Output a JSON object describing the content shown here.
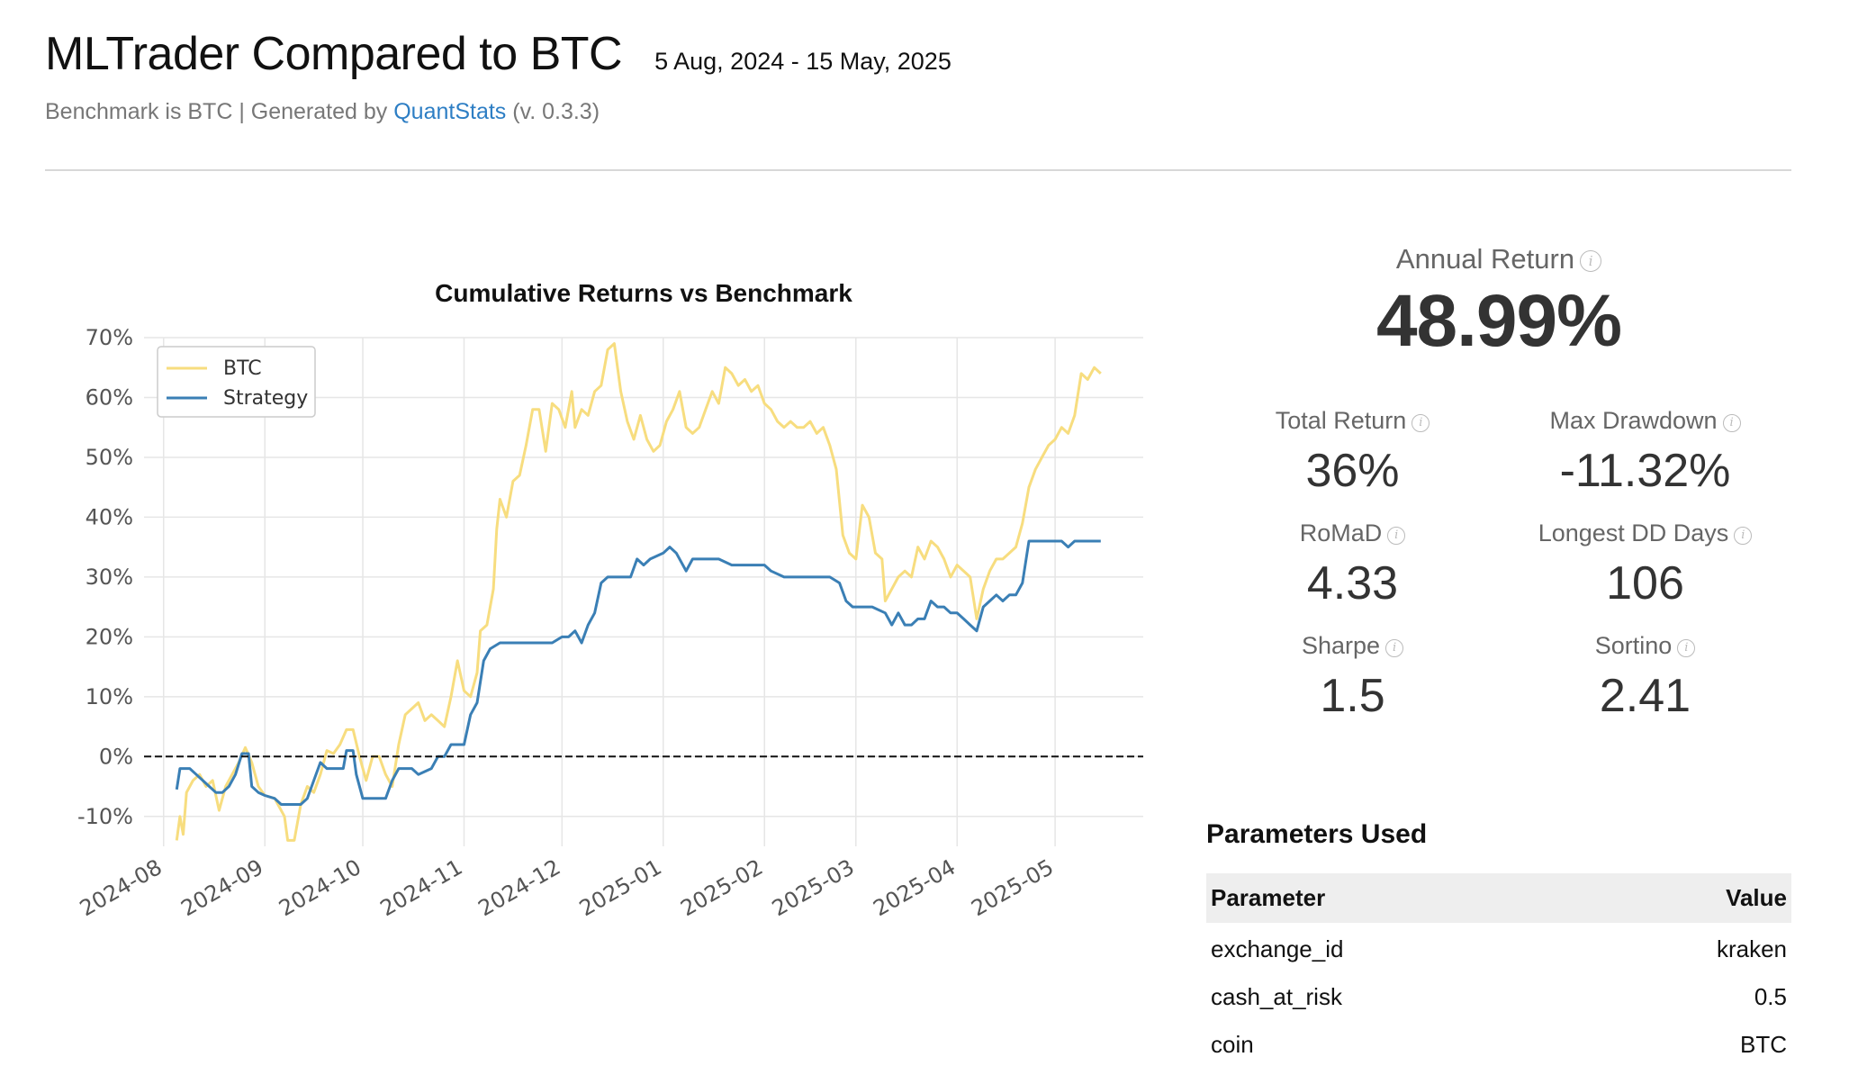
{
  "header": {
    "title": "MLTrader Compared to BTC",
    "date_range": "5 Aug, 2024 - 15 May, 2025",
    "subtitle_prefix": "Benchmark is BTC | Generated by ",
    "subtitle_link": "QuantStats",
    "subtitle_suffix": " (v. 0.3.3)"
  },
  "colors": {
    "btc": "#f7dd7f",
    "strategy": "#3a7fb5",
    "link": "#2d7ec4"
  },
  "chart_data": {
    "type": "line",
    "title": "Cumulative Returns vs Benchmark",
    "xlabel": "",
    "ylabel": "",
    "ylim": [
      -15,
      70
    ],
    "y_ticks": [
      -10,
      0,
      10,
      20,
      30,
      40,
      50,
      60,
      70
    ],
    "y_tick_labels": [
      "-10%",
      "0%",
      "10%",
      "20%",
      "30%",
      "40%",
      "50%",
      "60%",
      "70%"
    ],
    "x_tick_labels": [
      "2024-08",
      "2024-09",
      "2024-10",
      "2024-11",
      "2024-12",
      "2025-01",
      "2025-02",
      "2025-03",
      "2025-04",
      "2025-05"
    ],
    "x_tick_dates": [
      "2024-08-01",
      "2024-09-01",
      "2024-10-01",
      "2024-11-01",
      "2024-12-01",
      "2025-01-01",
      "2025-02-01",
      "2025-03-01",
      "2025-04-01",
      "2025-05-01"
    ],
    "xlim": [
      "2024-07-26",
      "2025-05-28"
    ],
    "legend_position": "top-left",
    "grid": true,
    "baseline": 0,
    "series": [
      {
        "name": "BTC",
        "color": "#f7dd7f",
        "points": [
          [
            "2024-08-05",
            -14
          ],
          [
            "2024-08-06",
            -10
          ],
          [
            "2024-08-07",
            -13
          ],
          [
            "2024-08-08",
            -6
          ],
          [
            "2024-08-10",
            -4
          ],
          [
            "2024-08-12",
            -3
          ],
          [
            "2024-08-14",
            -5
          ],
          [
            "2024-08-16",
            -4
          ],
          [
            "2024-08-18",
            -9
          ],
          [
            "2024-08-20",
            -5
          ],
          [
            "2024-08-22",
            -3
          ],
          [
            "2024-08-24",
            -1
          ],
          [
            "2024-08-26",
            1.5
          ],
          [
            "2024-08-28",
            -1
          ],
          [
            "2024-08-30",
            -5
          ],
          [
            "2024-09-01",
            -6.5
          ],
          [
            "2024-09-04",
            -7
          ],
          [
            "2024-09-07",
            -10
          ],
          [
            "2024-09-08",
            -14
          ],
          [
            "2024-09-10",
            -14
          ],
          [
            "2024-09-12",
            -8
          ],
          [
            "2024-09-14",
            -5
          ],
          [
            "2024-09-16",
            -6
          ],
          [
            "2024-09-18",
            -3
          ],
          [
            "2024-09-20",
            1
          ],
          [
            "2024-09-22",
            0.5
          ],
          [
            "2024-09-24",
            2
          ],
          [
            "2024-09-26",
            4.5
          ],
          [
            "2024-09-28",
            4.5
          ],
          [
            "2024-09-30",
            0
          ],
          [
            "2024-10-02",
            -4
          ],
          [
            "2024-10-04",
            0
          ],
          [
            "2024-10-06",
            0
          ],
          [
            "2024-10-08",
            -3
          ],
          [
            "2024-10-10",
            -5
          ],
          [
            "2024-10-12",
            2
          ],
          [
            "2024-10-14",
            7
          ],
          [
            "2024-10-16",
            8
          ],
          [
            "2024-10-18",
            9
          ],
          [
            "2024-10-20",
            6
          ],
          [
            "2024-10-22",
            7
          ],
          [
            "2024-10-24",
            6
          ],
          [
            "2024-10-26",
            5
          ],
          [
            "2024-10-28",
            10
          ],
          [
            "2024-10-30",
            16
          ],
          [
            "2024-11-01",
            11
          ],
          [
            "2024-11-03",
            10
          ],
          [
            "2024-11-05",
            14
          ],
          [
            "2024-11-06",
            21
          ],
          [
            "2024-11-08",
            22
          ],
          [
            "2024-11-10",
            28
          ],
          [
            "2024-11-11",
            38
          ],
          [
            "2024-11-12",
            43
          ],
          [
            "2024-11-14",
            40
          ],
          [
            "2024-11-16",
            46
          ],
          [
            "2024-11-18",
            47
          ],
          [
            "2024-11-20",
            52
          ],
          [
            "2024-11-22",
            58
          ],
          [
            "2024-11-24",
            58
          ],
          [
            "2024-11-26",
            51
          ],
          [
            "2024-11-28",
            59
          ],
          [
            "2024-11-30",
            58
          ],
          [
            "2024-12-02",
            55
          ],
          [
            "2024-12-04",
            61
          ],
          [
            "2024-12-05",
            55
          ],
          [
            "2024-12-07",
            58
          ],
          [
            "2024-12-09",
            57
          ],
          [
            "2024-12-11",
            61
          ],
          [
            "2024-12-13",
            62
          ],
          [
            "2024-12-15",
            68
          ],
          [
            "2024-12-17",
            69
          ],
          [
            "2024-12-19",
            61
          ],
          [
            "2024-12-21",
            56
          ],
          [
            "2024-12-23",
            53
          ],
          [
            "2024-12-25",
            57
          ],
          [
            "2024-12-27",
            53
          ],
          [
            "2024-12-29",
            51
          ],
          [
            "2024-12-31",
            52
          ],
          [
            "2025-01-02",
            56
          ],
          [
            "2025-01-04",
            58
          ],
          [
            "2025-01-06",
            61
          ],
          [
            "2025-01-08",
            55
          ],
          [
            "2025-01-10",
            54
          ],
          [
            "2025-01-12",
            55
          ],
          [
            "2025-01-14",
            58
          ],
          [
            "2025-01-16",
            61
          ],
          [
            "2025-01-18",
            59
          ],
          [
            "2025-01-20",
            65
          ],
          [
            "2025-01-22",
            64
          ],
          [
            "2025-01-24",
            62
          ],
          [
            "2025-01-26",
            63
          ],
          [
            "2025-01-28",
            61
          ],
          [
            "2025-01-30",
            62
          ],
          [
            "2025-02-01",
            59
          ],
          [
            "2025-02-03",
            58
          ],
          [
            "2025-02-05",
            56
          ],
          [
            "2025-02-07",
            55
          ],
          [
            "2025-02-09",
            56
          ],
          [
            "2025-02-11",
            55
          ],
          [
            "2025-02-13",
            55
          ],
          [
            "2025-02-15",
            56
          ],
          [
            "2025-02-17",
            54
          ],
          [
            "2025-02-19",
            55
          ],
          [
            "2025-02-21",
            52
          ],
          [
            "2025-02-23",
            48
          ],
          [
            "2025-02-25",
            37
          ],
          [
            "2025-02-27",
            34
          ],
          [
            "2025-03-01",
            33
          ],
          [
            "2025-03-03",
            42
          ],
          [
            "2025-03-05",
            40
          ],
          [
            "2025-03-07",
            34
          ],
          [
            "2025-03-09",
            33
          ],
          [
            "2025-03-10",
            26
          ],
          [
            "2025-03-12",
            28
          ],
          [
            "2025-03-14",
            30
          ],
          [
            "2025-03-16",
            31
          ],
          [
            "2025-03-18",
            30
          ],
          [
            "2025-03-20",
            35
          ],
          [
            "2025-03-22",
            33
          ],
          [
            "2025-03-24",
            36
          ],
          [
            "2025-03-26",
            35
          ],
          [
            "2025-03-28",
            33
          ],
          [
            "2025-03-30",
            30
          ],
          [
            "2025-04-01",
            32
          ],
          [
            "2025-04-03",
            31
          ],
          [
            "2025-04-05",
            30
          ],
          [
            "2025-04-07",
            23
          ],
          [
            "2025-04-09",
            28
          ],
          [
            "2025-04-11",
            31
          ],
          [
            "2025-04-13",
            33
          ],
          [
            "2025-04-15",
            33
          ],
          [
            "2025-04-17",
            34
          ],
          [
            "2025-04-19",
            35
          ],
          [
            "2025-04-21",
            39
          ],
          [
            "2025-04-23",
            45
          ],
          [
            "2025-04-25",
            48
          ],
          [
            "2025-04-27",
            50
          ],
          [
            "2025-04-29",
            52
          ],
          [
            "2025-05-01",
            53
          ],
          [
            "2025-05-03",
            55
          ],
          [
            "2025-05-05",
            54
          ],
          [
            "2025-05-07",
            57
          ],
          [
            "2025-05-09",
            64
          ],
          [
            "2025-05-11",
            63
          ],
          [
            "2025-05-13",
            65
          ],
          [
            "2025-05-15",
            64
          ]
        ]
      },
      {
        "name": "Strategy",
        "color": "#3a7fb5",
        "points": [
          [
            "2024-08-05",
            -5.5
          ],
          [
            "2024-08-06",
            -2
          ],
          [
            "2024-08-09",
            -2
          ],
          [
            "2024-08-11",
            -3
          ],
          [
            "2024-08-13",
            -4
          ],
          [
            "2024-08-15",
            -5
          ],
          [
            "2024-08-17",
            -6
          ],
          [
            "2024-08-19",
            -6
          ],
          [
            "2024-08-21",
            -5
          ],
          [
            "2024-08-23",
            -3
          ],
          [
            "2024-08-25",
            0.5
          ],
          [
            "2024-08-27",
            0.5
          ],
          [
            "2024-08-28",
            -5
          ],
          [
            "2024-08-30",
            -6
          ],
          [
            "2024-09-01",
            -6.5
          ],
          [
            "2024-09-04",
            -7
          ],
          [
            "2024-09-06",
            -8
          ],
          [
            "2024-09-12",
            -8
          ],
          [
            "2024-09-14",
            -7
          ],
          [
            "2024-09-16",
            -4
          ],
          [
            "2024-09-18",
            -1
          ],
          [
            "2024-09-20",
            -2
          ],
          [
            "2024-09-25",
            -2
          ],
          [
            "2024-09-26",
            1
          ],
          [
            "2024-09-28",
            1
          ],
          [
            "2024-09-29",
            -3
          ],
          [
            "2024-10-01",
            -7
          ],
          [
            "2024-10-08",
            -7
          ],
          [
            "2024-10-10",
            -4
          ],
          [
            "2024-10-12",
            -2
          ],
          [
            "2024-10-16",
            -2
          ],
          [
            "2024-10-18",
            -3
          ],
          [
            "2024-10-22",
            -2
          ],
          [
            "2024-10-24",
            0
          ],
          [
            "2024-10-26",
            0
          ],
          [
            "2024-10-28",
            2
          ],
          [
            "2024-11-01",
            2
          ],
          [
            "2024-11-03",
            7
          ],
          [
            "2024-11-05",
            9
          ],
          [
            "2024-11-07",
            16
          ],
          [
            "2024-11-09",
            18
          ],
          [
            "2024-11-12",
            19
          ],
          [
            "2024-11-16",
            19
          ],
          [
            "2024-11-20",
            19
          ],
          [
            "2024-11-24",
            19
          ],
          [
            "2024-11-28",
            19
          ],
          [
            "2024-12-01",
            20
          ],
          [
            "2024-12-03",
            20
          ],
          [
            "2024-12-05",
            21
          ],
          [
            "2024-12-07",
            19
          ],
          [
            "2024-12-09",
            22
          ],
          [
            "2024-12-11",
            24
          ],
          [
            "2024-12-13",
            29
          ],
          [
            "2024-12-15",
            30
          ],
          [
            "2024-12-18",
            30
          ],
          [
            "2024-12-22",
            30
          ],
          [
            "2024-12-24",
            33
          ],
          [
            "2024-12-26",
            32
          ],
          [
            "2024-12-28",
            33
          ],
          [
            "2025-01-01",
            34
          ],
          [
            "2025-01-03",
            35
          ],
          [
            "2025-01-05",
            34
          ],
          [
            "2025-01-08",
            31
          ],
          [
            "2025-01-10",
            33
          ],
          [
            "2025-01-14",
            33
          ],
          [
            "2025-01-18",
            33
          ],
          [
            "2025-01-22",
            32
          ],
          [
            "2025-01-26",
            32
          ],
          [
            "2025-01-30",
            32
          ],
          [
            "2025-02-01",
            32
          ],
          [
            "2025-02-03",
            31
          ],
          [
            "2025-02-07",
            30
          ],
          [
            "2025-02-12",
            30
          ],
          [
            "2025-02-17",
            30
          ],
          [
            "2025-02-21",
            30
          ],
          [
            "2025-02-24",
            29
          ],
          [
            "2025-02-26",
            26
          ],
          [
            "2025-02-28",
            25
          ],
          [
            "2025-03-02",
            25
          ],
          [
            "2025-03-06",
            25
          ],
          [
            "2025-03-10",
            24
          ],
          [
            "2025-03-12",
            22
          ],
          [
            "2025-03-14",
            24
          ],
          [
            "2025-03-16",
            22
          ],
          [
            "2025-03-18",
            22
          ],
          [
            "2025-03-20",
            23
          ],
          [
            "2025-03-22",
            23
          ],
          [
            "2025-03-24",
            26
          ],
          [
            "2025-03-26",
            25
          ],
          [
            "2025-03-28",
            25
          ],
          [
            "2025-03-30",
            24
          ],
          [
            "2025-04-01",
            24
          ],
          [
            "2025-04-03",
            23
          ],
          [
            "2025-04-05",
            22
          ],
          [
            "2025-04-07",
            21
          ],
          [
            "2025-04-09",
            25
          ],
          [
            "2025-04-11",
            26
          ],
          [
            "2025-04-13",
            27
          ],
          [
            "2025-04-15",
            26
          ],
          [
            "2025-04-17",
            27
          ],
          [
            "2025-04-19",
            27
          ],
          [
            "2025-04-21",
            29
          ],
          [
            "2025-04-23",
            36
          ],
          [
            "2025-04-25",
            36
          ],
          [
            "2025-04-29",
            36
          ],
          [
            "2025-05-03",
            36
          ],
          [
            "2025-05-05",
            35
          ],
          [
            "2025-05-07",
            36
          ],
          [
            "2025-05-11",
            36
          ],
          [
            "2025-05-15",
            36
          ]
        ]
      }
    ]
  },
  "metrics": {
    "annual_return": {
      "label": "Annual Return",
      "value": "48.99%"
    },
    "total_return": {
      "label": "Total Return",
      "value": "36%"
    },
    "max_drawdown": {
      "label": "Max Drawdown",
      "value": "-11.32%"
    },
    "romad": {
      "label": "RoMaD",
      "value": "4.33"
    },
    "longest_dd_days": {
      "label": "Longest DD Days",
      "value": "106"
    },
    "sharpe": {
      "label": "Sharpe",
      "value": "1.5"
    },
    "sortino": {
      "label": "Sortino",
      "value": "2.41"
    },
    "info_glyph": "i"
  },
  "params": {
    "title": "Parameters Used",
    "col_param": "Parameter",
    "col_value": "Value",
    "rows": [
      {
        "name": "exchange_id",
        "value": "kraken"
      },
      {
        "name": "cash_at_risk",
        "value": "0.5"
      },
      {
        "name": "coin",
        "value": "BTC"
      }
    ]
  }
}
